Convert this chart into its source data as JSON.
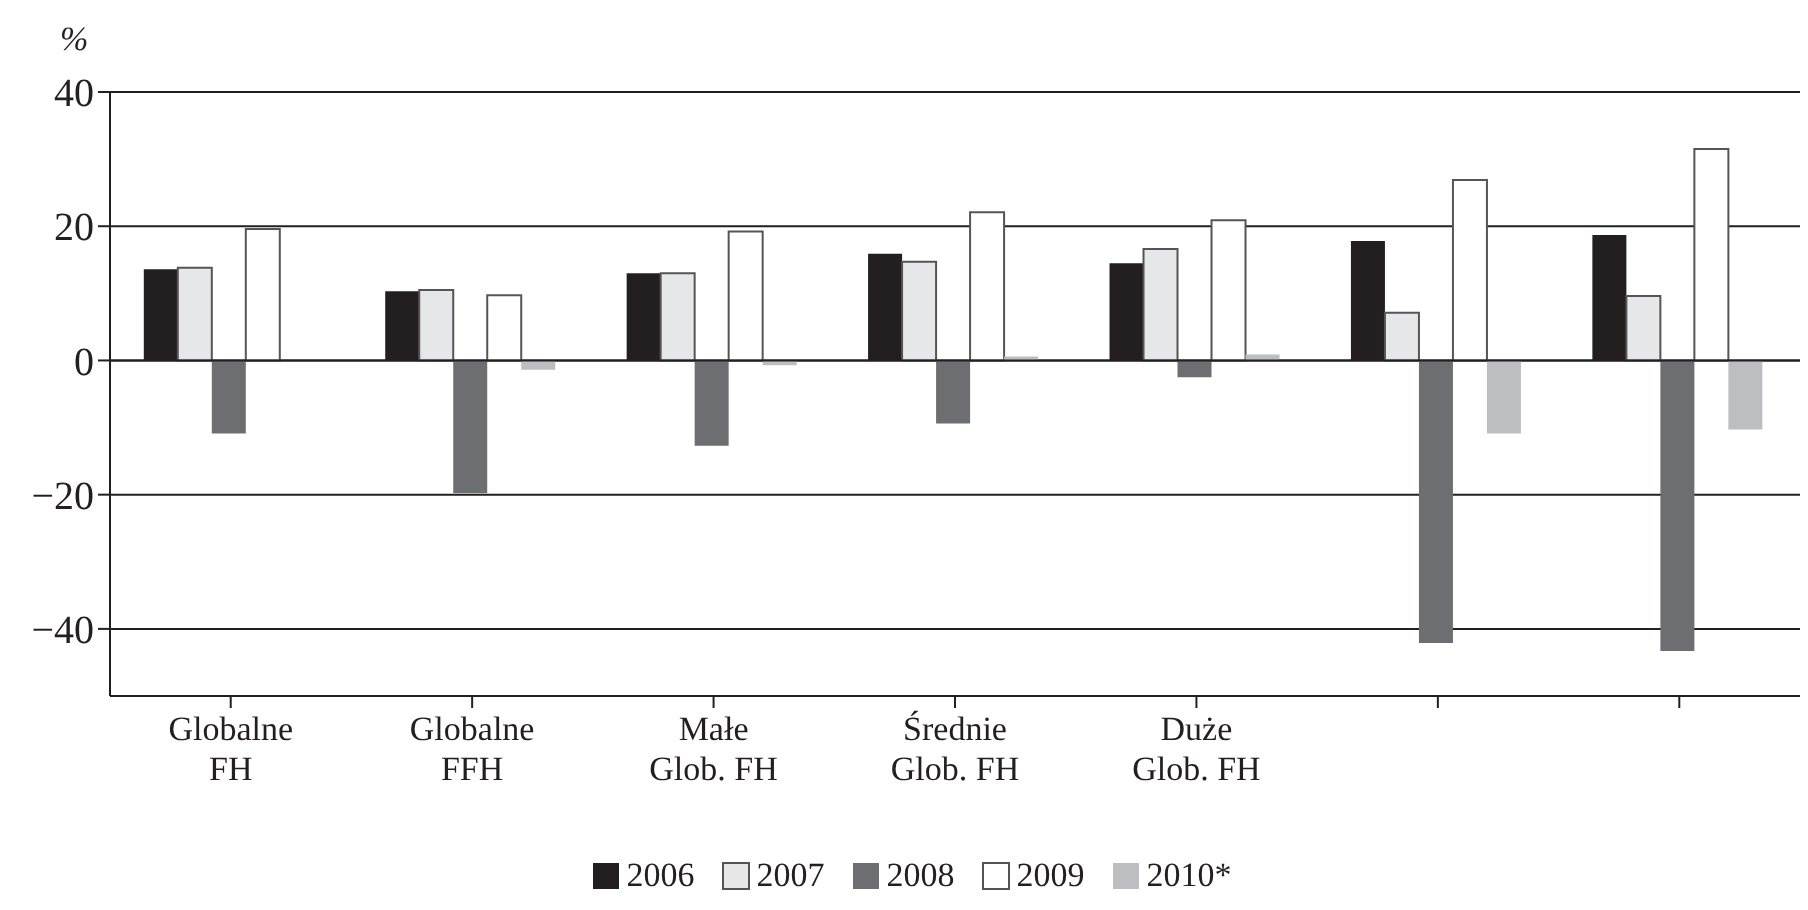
{
  "chart_data": {
    "type": "bar",
    "ylabel": "%",
    "categories": [
      "Globalne\nFH",
      "Globalne\nFFH",
      "Małe\nGlob. FH",
      "Średnie\nGlob. FH",
      "Duże\nGlob. FH",
      null,
      null
    ],
    "series": [
      {
        "name": "2006",
        "color": "#231f20",
        "values": [
          13.6,
          10.3,
          13,
          15.9,
          14.5,
          17.8,
          18.7
        ]
      },
      {
        "name": "2007",
        "color": "#e6e7e8",
        "values": [
          13.8,
          10.5,
          13,
          14.7,
          16.6,
          7.1,
          9.6
        ]
      },
      {
        "name": "2008",
        "color": "#6d6e71",
        "values": [
          -10.9,
          -19.8,
          -12.7,
          -9.4,
          -2.5,
          -42.1,
          -43.3
        ]
      },
      {
        "name": "2009",
        "color": "#ffffff",
        "values": [
          19.6,
          9.7,
          19.2,
          22.1,
          20.9,
          26.9,
          31.5
        ]
      },
      {
        "name": "2010*",
        "color": "#bcbec0",
        "values": [
          null,
          -1.4,
          -0.7,
          0.6,
          0.9,
          -10.9,
          -10.3
        ]
      }
    ],
    "ylim": [
      -50,
      40
    ],
    "yticks": [
      -40,
      -20,
      0,
      20,
      40
    ],
    "grid": "y",
    "legend": "bottom"
  }
}
